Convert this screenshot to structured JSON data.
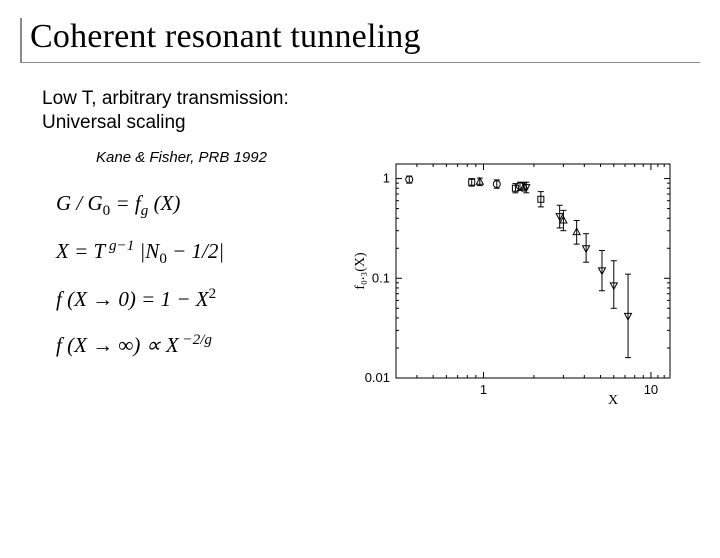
{
  "title": "Coherent resonant tunneling",
  "body": {
    "line1": "Low T, arbitrary transmission:",
    "line2": "Universal scaling"
  },
  "citation": "Kane & Fisher, PRB 1992",
  "equations": {
    "eq1_lhs": "G / G",
    "eq1_sub": "0",
    "eq1_rhs_fn": " = f",
    "eq1_rhs_sub": "g",
    "eq1_rhs_arg": " (X)",
    "eq2_lhs": "X = T",
    "eq2_sup": " g−1",
    "eq2_mid": " |N",
    "eq2_nsub": "0",
    "eq2_tail": " − 1/2|",
    "eq3": "f (X → 0) = 1 − X",
    "eq3_sup": "2",
    "eq4_lhs": "f (X → ∞) ∝ X",
    "eq4_sup": " −2/g"
  },
  "chart": {
    "type": "scatter",
    "x_axis": {
      "label": "X",
      "scale": "log",
      "lim": [
        0.3,
        13
      ],
      "ticks": [
        1,
        10
      ],
      "tick_labels": [
        "1",
        "10"
      ],
      "minor_ticks": [
        0.3,
        0.4,
        0.5,
        0.6,
        0.7,
        0.8,
        0.9,
        2,
        3,
        4,
        5,
        6,
        7,
        8,
        9,
        11,
        12,
        13
      ]
    },
    "y_axis": {
      "label": "f₀.₃(X)",
      "scale": "log",
      "lim": [
        0.01,
        1.4
      ],
      "ticks": [
        0.01,
        0.1,
        1
      ],
      "tick_labels": [
        "0.01",
        "0.1",
        "1"
      ],
      "minor_ticks": [
        0.02,
        0.03,
        0.04,
        0.05,
        0.06,
        0.07,
        0.08,
        0.09,
        0.2,
        0.3,
        0.4,
        0.5,
        0.6,
        0.7,
        0.8,
        0.9,
        1.4
      ]
    },
    "series": [
      {
        "marker": "circle",
        "x": 0.36,
        "y": 0.98,
        "ylo": 0.9,
        "yhi": 1.06
      },
      {
        "marker": "square",
        "x": 0.85,
        "y": 0.92,
        "ylo": 0.84,
        "yhi": 1.0
      },
      {
        "marker": "triangle-up",
        "x": 0.95,
        "y": 0.93,
        "ylo": 0.85,
        "yhi": 1.01
      },
      {
        "marker": "circle",
        "x": 1.2,
        "y": 0.88,
        "ylo": 0.8,
        "yhi": 0.97
      },
      {
        "marker": "square",
        "x": 1.55,
        "y": 0.8,
        "ylo": 0.72,
        "yhi": 0.89
      },
      {
        "marker": "circle",
        "x": 1.65,
        "y": 0.84,
        "ylo": 0.76,
        "yhi": 0.92
      },
      {
        "marker": "triangle-up",
        "x": 1.75,
        "y": 0.83,
        "ylo": 0.75,
        "yhi": 0.91
      },
      {
        "marker": "triangle-down",
        "x": 1.8,
        "y": 0.82,
        "ylo": 0.72,
        "yhi": 0.92
      },
      {
        "marker": "square",
        "x": 2.2,
        "y": 0.62,
        "ylo": 0.52,
        "yhi": 0.74
      },
      {
        "marker": "triangle-down",
        "x": 2.85,
        "y": 0.42,
        "ylo": 0.32,
        "yhi": 0.54
      },
      {
        "marker": "triangle-up",
        "x": 3.0,
        "y": 0.38,
        "ylo": 0.3,
        "yhi": 0.48
      },
      {
        "marker": "triangle-up",
        "x": 3.6,
        "y": 0.29,
        "ylo": 0.22,
        "yhi": 0.38
      },
      {
        "marker": "triangle-down",
        "x": 4.1,
        "y": 0.2,
        "ylo": 0.145,
        "yhi": 0.28
      },
      {
        "marker": "triangle-down",
        "x": 5.1,
        "y": 0.12,
        "ylo": 0.075,
        "yhi": 0.19
      },
      {
        "marker": "triangle-down",
        "x": 6.0,
        "y": 0.085,
        "ylo": 0.05,
        "yhi": 0.15
      },
      {
        "marker": "triangle-down",
        "x": 7.3,
        "y": 0.042,
        "ylo": 0.016,
        "yhi": 0.11
      }
    ],
    "colors": {
      "axis": "#000000",
      "marker_stroke": "#000000",
      "marker_fill": "none",
      "background": "#ffffff"
    },
    "marker_size": 5,
    "line_width": 1
  }
}
